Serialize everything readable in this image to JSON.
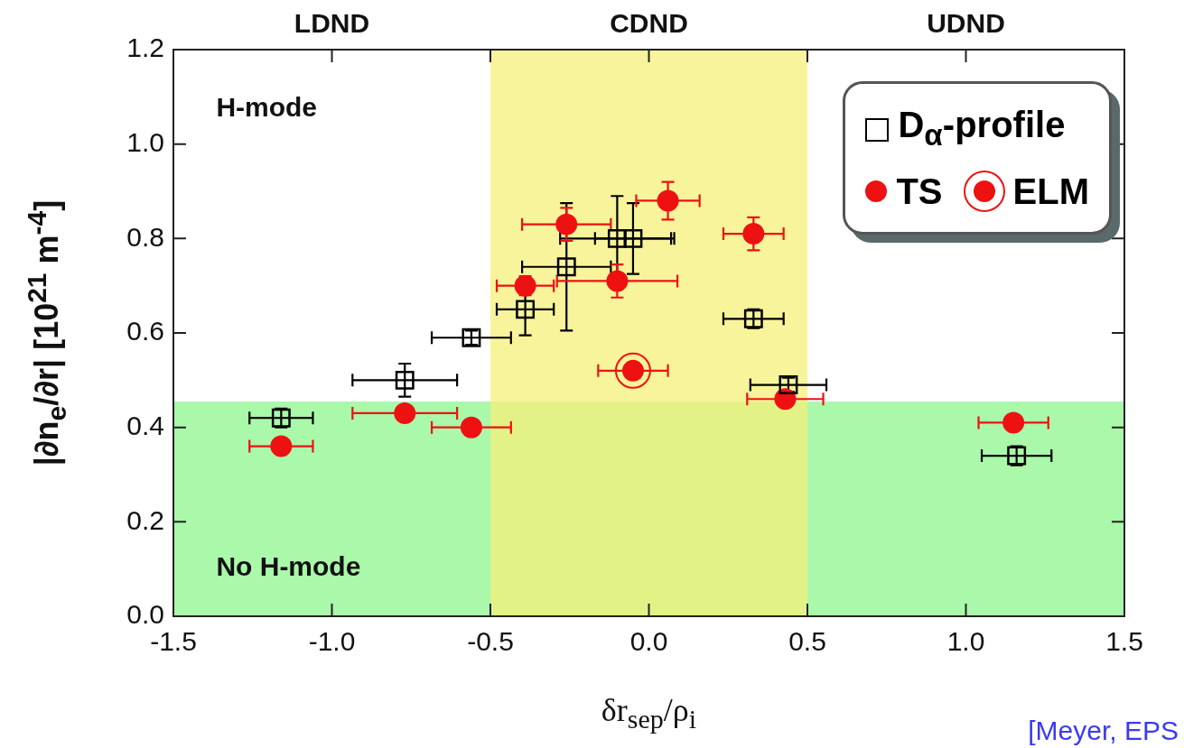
{
  "chart_data": {
    "type": "scatter",
    "xlabel": "δr$_{sep}$/ρ$_{i}$",
    "ylabel": "|∂n$_{e}$/∂r| [10$^{21}$ m$^{-4}$]",
    "xlim": [
      -1.5,
      1.5
    ],
    "xticks": [
      {
        "value": -1.5,
        "label": "-1.5"
      },
      {
        "value": -1,
        "label": "-1.0"
      },
      {
        "value": -0.5,
        "label": "-0.5"
      },
      {
        "value": 0,
        "label": "0.0"
      },
      {
        "value": 0.5,
        "label": "0.5"
      },
      {
        "value": 1,
        "label": "1.0"
      },
      {
        "value": 1.5,
        "label": "1.5"
      }
    ],
    "ylim": [
      0,
      1.2
    ],
    "yticks": [
      {
        "value": 0,
        "label": "0.0"
      },
      {
        "value": 0.2,
        "label": "0.2"
      },
      {
        "value": 0.4,
        "label": "0.4"
      },
      {
        "value": 0.6,
        "label": "0.6"
      },
      {
        "value": 0.8,
        "label": "0.8"
      },
      {
        "value": 1,
        "label": "1.0"
      },
      {
        "value": 1.2,
        "label": "1.2"
      }
    ],
    "grid": false,
    "legend": "top right",
    "bands": [
      {
        "axis": "y",
        "from": 0,
        "to": 0.455,
        "color": "#8ef58e"
      },
      {
        "axis": "x",
        "from": -0.5,
        "to": 0.5,
        "color": "#f5f07a"
      }
    ],
    "series": [
      {
        "name": "D$_{α}$-profile",
        "color": "#000000",
        "marker": "square",
        "x": [
          -1.16,
          -0.77,
          -0.56,
          -0.39,
          -0.26,
          -0.1,
          -0.05,
          0.33,
          0.44,
          1.16
        ],
        "values": [
          0.42,
          0.5,
          0.59,
          0.65,
          0.74,
          0.8,
          0.8,
          0.63,
          0.49,
          0.34
        ],
        "errors": [
          0.02,
          0.035,
          0.015,
          0.055,
          0.135,
          0.09,
          0.075,
          0.02,
          0.015,
          0.02
        ],
        "xerrors": [
          0.1,
          0.165,
          0.125,
          0.09,
          0.14,
          0.18,
          0.12,
          0.095,
          0.12,
          0.11
        ]
      },
      {
        "name": "TS",
        "color": "#ee1111",
        "marker": "circle",
        "x": [
          -1.16,
          -0.77,
          -0.56,
          -0.39,
          -0.26,
          -0.1,
          0.06,
          0.33,
          0.43,
          1.15
        ],
        "values": [
          0.36,
          0.43,
          0.4,
          0.7,
          0.83,
          0.71,
          0.88,
          0.81,
          0.46,
          0.41
        ],
        "errors": [
          null,
          null,
          null,
          0.02,
          0.035,
          0.035,
          0.04,
          0.035,
          null,
          null
        ],
        "xerrors": [
          0.1,
          0.165,
          0.125,
          0.09,
          0.14,
          0.19,
          0.1,
          0.095,
          0.12,
          0.11
        ]
      },
      {
        "name": "ELM",
        "color": "#ee1111",
        "marker": "circle",
        "x": [
          -0.05
        ],
        "values": [
          0.52
        ],
        "xerrors": [
          0.11
        ]
      }
    ],
    "annotations": [
      "LDND",
      "CDND",
      "UDND",
      "H-mode",
      "No H-mode",
      "[Meyer, EPS"
    ]
  }
}
